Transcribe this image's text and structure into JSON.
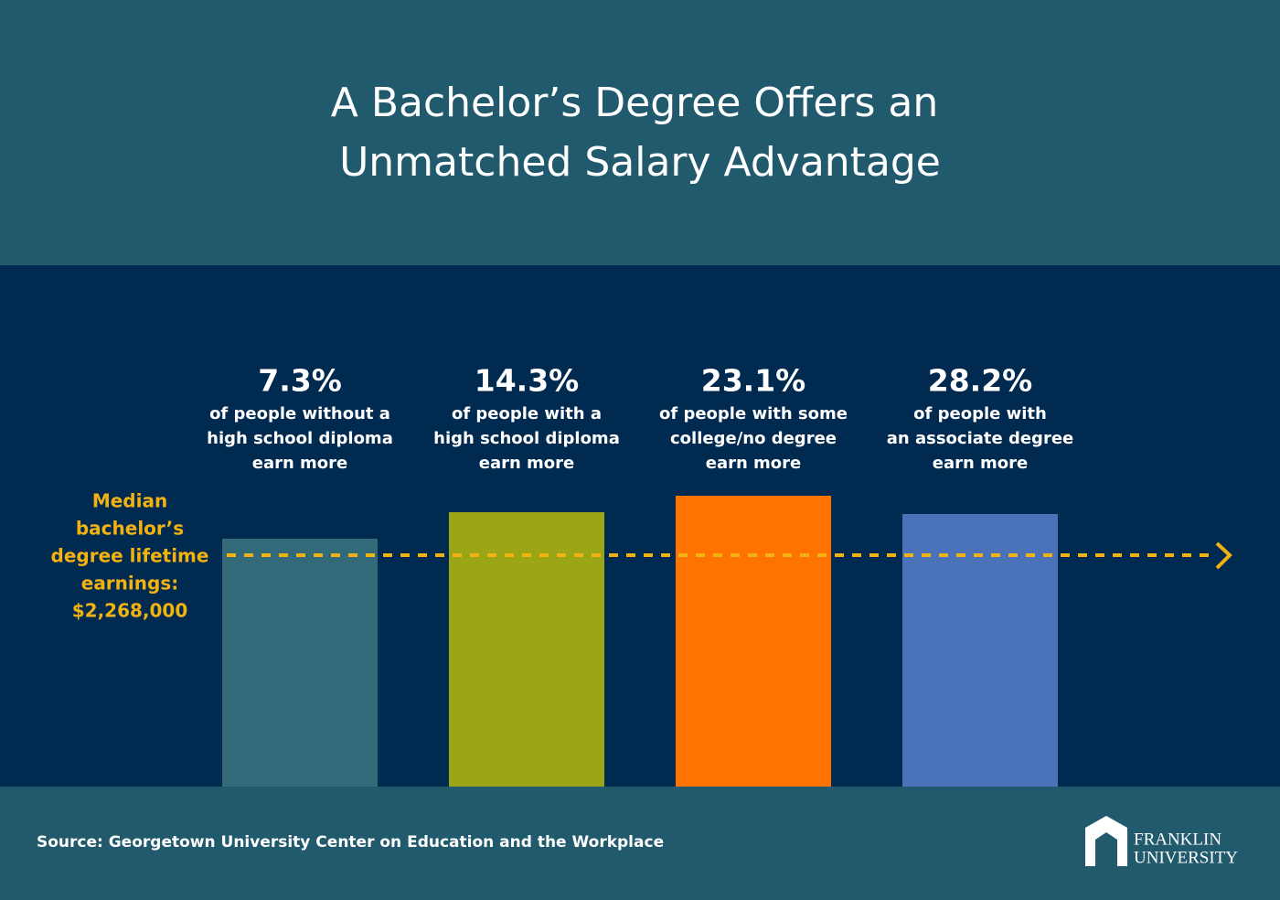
{
  "header": {
    "title_lines": [
      "A Bachelor’s Degree Offers an",
      "Unmatched Salary Advantage"
    ]
  },
  "median_label": {
    "lines": [
      "Median",
      "bachelor’s",
      "degree lifetime",
      "earnings:",
      "$2,268,000"
    ]
  },
  "columns": [
    {
      "percent": "7.3%",
      "lines": [
        "of people without a",
        "high school diploma",
        "earn more"
      ]
    },
    {
      "percent": "14.3%",
      "lines": [
        "of people with a",
        "high school diploma",
        "earn more"
      ]
    },
    {
      "percent": "23.1%",
      "lines": [
        "of people with some",
        "college/no degree",
        "earn more"
      ]
    },
    {
      "percent": "28.2%",
      "lines": [
        "of people with",
        "an associate degree",
        "earn more"
      ]
    }
  ],
  "footer": {
    "source": "Source: Georgetown University Center on Education and the Workplace",
    "logo_lines": [
      "FRANKLIN",
      "UNIVERSITY"
    ]
  }
}
